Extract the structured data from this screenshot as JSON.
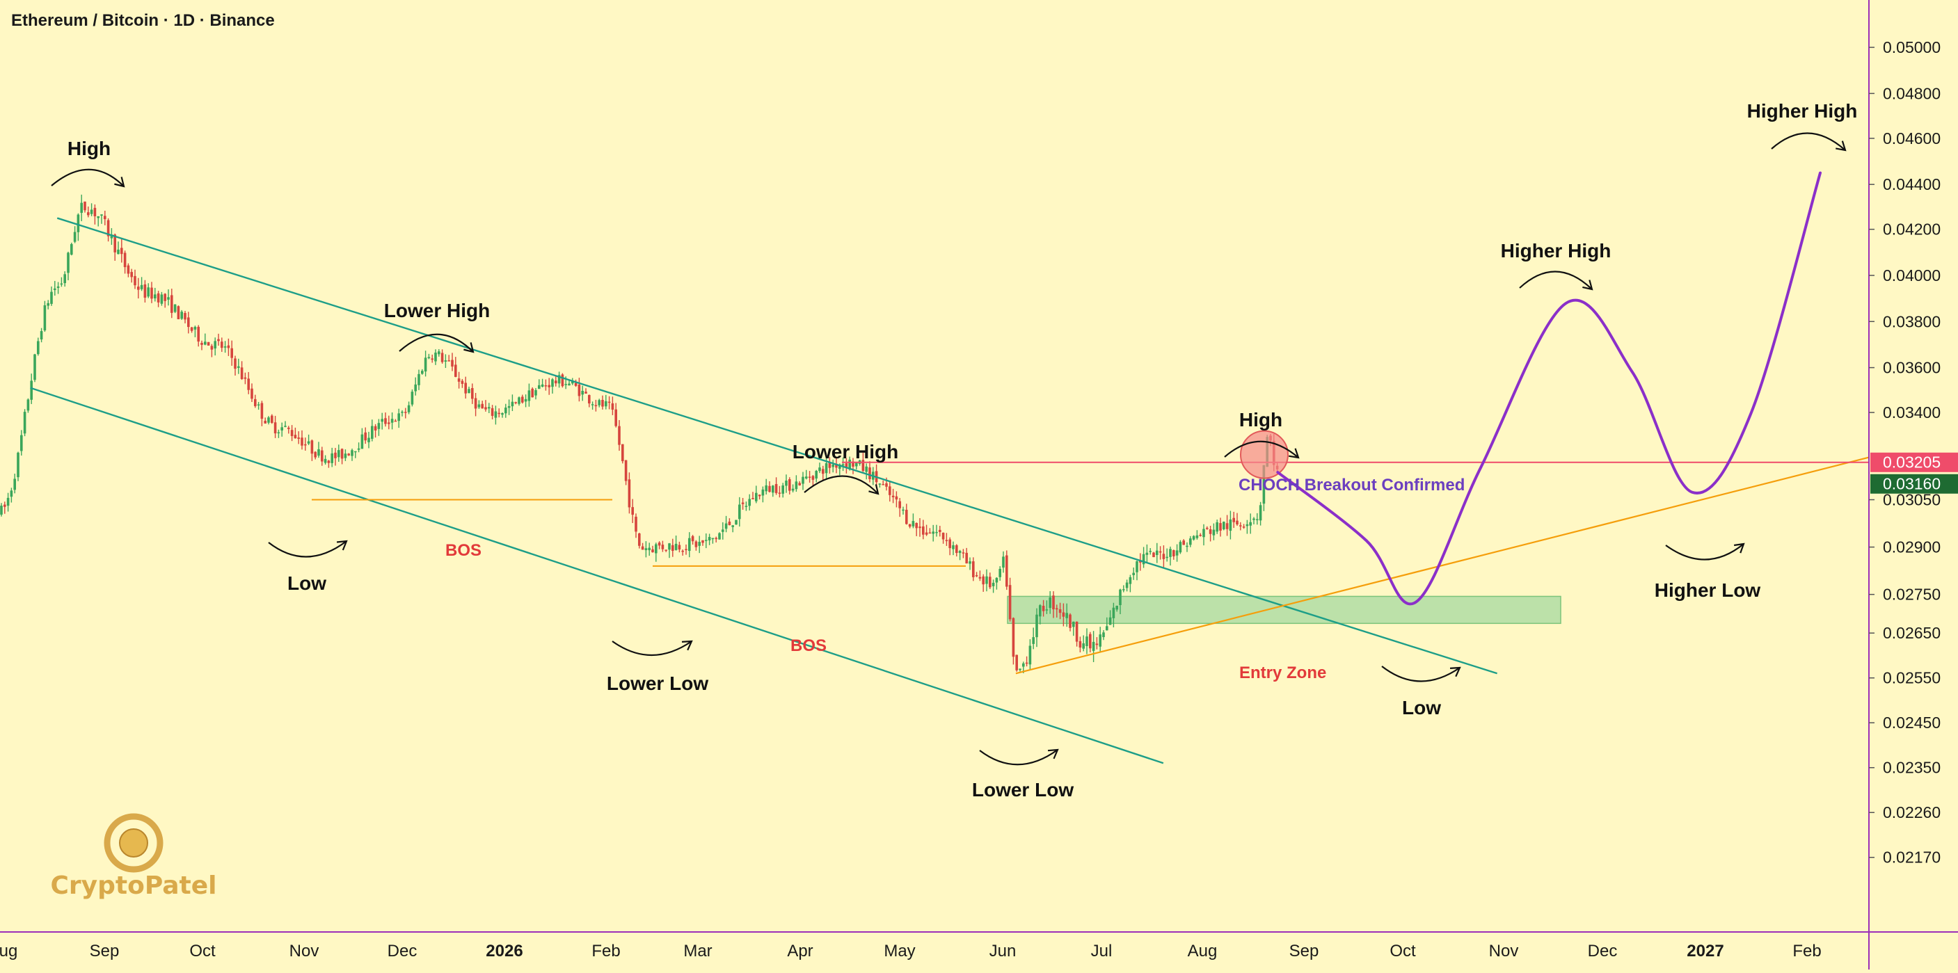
{
  "header": {
    "title": "Ethereum / Bitcoin · 1D · Binance"
  },
  "watermark": {
    "text": "CryptoPatel"
  },
  "colors": {
    "background": "#fff8c4",
    "channel": "#1d9e88",
    "trendline": "#f59e0b",
    "bos": "#f59e0b",
    "resistance": "#ef4c6a",
    "projection": "#8b2fc9",
    "candle_up": "#3aa65a",
    "candle_down": "#d6453d",
    "entry_zone": "#a5d9a0",
    "label_red": "#e23a3a",
    "label_purple": "#6b3fbf",
    "axis": "#9c2fb8"
  },
  "chart_data": {
    "type": "candlestick",
    "title": "Ethereum / Bitcoin · 1D · Binance",
    "xlabel": "",
    "ylabel": "",
    "x_ticks": [
      "ug",
      "Sep",
      "Oct",
      "Nov",
      "Dec",
      "2026",
      "Feb",
      "Mar",
      "Apr",
      "May",
      "Jun",
      "Jul",
      "Aug",
      "Sep",
      "Oct",
      "Nov",
      "Dec",
      "2027",
      "Feb"
    ],
    "x_tick_bold": [
      "2026",
      "2027"
    ],
    "y_ticks": [
      "0.05000",
      "0.04800",
      "0.04600",
      "0.04400",
      "0.04200",
      "0.04000",
      "0.03800",
      "0.03600",
      "0.03400",
      "0.03050",
      "0.02900",
      "0.02750",
      "0.02650",
      "0.02550",
      "0.02450",
      "0.02350",
      "0.02260",
      "0.02170"
    ],
    "price_tags": [
      {
        "value": "0.03205",
        "color": "#ef4c6a"
      },
      {
        "value": "0.03160",
        "color": "#1e6b32"
      }
    ],
    "price_swings": [
      {
        "date": "2025-08-01",
        "price": 0.0301
      },
      {
        "date": "2025-08-18",
        "price": 0.0395
      },
      {
        "date": "2025-08-26",
        "price": 0.043
      },
      {
        "date": "2025-09-15",
        "price": 0.0392
      },
      {
        "date": "2025-10-05",
        "price": 0.037
      },
      {
        "date": "2025-10-24",
        "price": 0.0334
      },
      {
        "date": "2025-11-09",
        "price": 0.0322
      },
      {
        "date": "2025-11-30",
        "price": 0.0338
      },
      {
        "date": "2025-12-10",
        "price": 0.0366
      },
      {
        "date": "2025-12-28",
        "price": 0.034
      },
      {
        "date": "2026-01-18",
        "price": 0.0354
      },
      {
        "date": "2026-02-01",
        "price": 0.0343
      },
      {
        "date": "2026-02-12",
        "price": 0.029
      },
      {
        "date": "2026-03-01",
        "price": 0.0291
      },
      {
        "date": "2026-03-25",
        "price": 0.031
      },
      {
        "date": "2026-04-15",
        "price": 0.032
      },
      {
        "date": "2026-05-10",
        "price": 0.0295
      },
      {
        "date": "2026-05-30",
        "price": 0.0278
      },
      {
        "date": "2026-06-01",
        "price": 0.0285
      },
      {
        "date": "2026-06-05",
        "price": 0.0256
      },
      {
        "date": "2026-06-15",
        "price": 0.0273
      },
      {
        "date": "2026-06-28",
        "price": 0.0262
      },
      {
        "date": "2026-07-15",
        "price": 0.0287
      },
      {
        "date": "2026-08-10",
        "price": 0.0297
      },
      {
        "date": "2026-08-18",
        "price": 0.03
      },
      {
        "date": "2026-08-21",
        "price": 0.033
      },
      {
        "date": "2026-08-24",
        "price": 0.0316
      }
    ],
    "projection_path": [
      {
        "date": "2026-08-24",
        "price": 0.0316
      },
      {
        "date": "2026-09-20",
        "price": 0.0292
      },
      {
        "date": "2026-10-05",
        "price": 0.0273
      },
      {
        "date": "2026-10-25",
        "price": 0.0318
      },
      {
        "date": "2026-11-20",
        "price": 0.0388
      },
      {
        "date": "2026-12-10",
        "price": 0.0358
      },
      {
        "date": "2026-12-28",
        "price": 0.0308
      },
      {
        "date": "2027-01-15",
        "price": 0.034
      },
      {
        "date": "2027-02-05",
        "price": 0.0445
      }
    ],
    "channel": {
      "upper": [
        {
          "date": "2025-08-18",
          "price": 0.0425
        },
        {
          "date": "2026-10-30",
          "price": 0.0256
        }
      ],
      "lower": [
        {
          "date": "2025-08-10",
          "price": 0.0351
        },
        {
          "date": "2026-07-20",
          "price": 0.0236
        }
      ]
    },
    "ascending_trendline": [
      {
        "date": "2026-06-05",
        "price": 0.0256
      },
      {
        "date": "2027-03-10",
        "price": 0.0322
      }
    ],
    "resistance_level": {
      "price": 0.032
    },
    "entry_zone": {
      "price_top": 0.02745,
      "price_bottom": 0.02675
    },
    "bos_levels": [
      {
        "price": 0.0305
      },
      {
        "price": 0.0284
      }
    ],
    "annotations": {
      "high_1": "High",
      "lower_high_1": "Lower High",
      "low_1": "Low",
      "bos_1": "BOS",
      "lower_low_1": "Lower Low",
      "lower_high_2": "Lower High",
      "bos_2": "BOS",
      "lower_low_2": "Lower Low",
      "high_2": "High",
      "choch": "CHOCH Breakout Confirmed",
      "entry_zone": "Entry Zone",
      "low_2": "Low",
      "higher_high_1": "Higher High",
      "higher_low": "Higher Low",
      "higher_high_2": "Higher High"
    }
  }
}
